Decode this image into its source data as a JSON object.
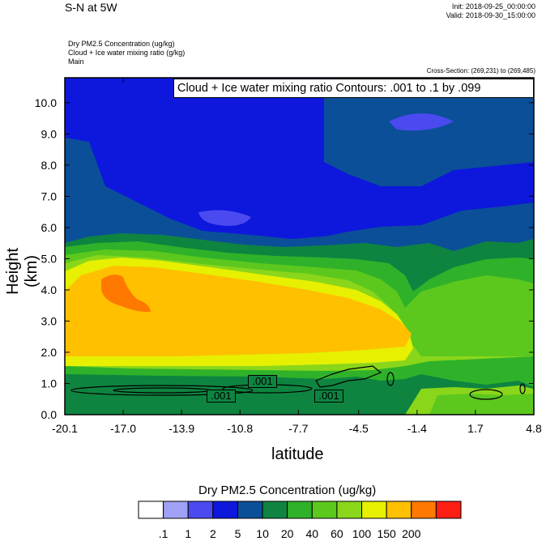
{
  "header": {
    "title": "S-N at 5W",
    "init": "Init: 2018-09-25_00:00:00",
    "valid": "Valid: 2018-09-30_15:00:00",
    "desc_line1": "Dry PM2.5 Concentration   (ug/kg)",
    "desc_line2": "Cloud + Ice water mixing ratio   (g/kg)",
    "desc_line3": "Main",
    "cross_section": "Cross-Section: (269,231) to (269,485)"
  },
  "chart_data": {
    "type": "heatmap",
    "title": "S-N at 5W",
    "xlabel": "latitude",
    "ylabel": "Height (km)",
    "x_ticks": [
      "-20.1",
      "-17.0",
      "-13.9",
      "-10.8",
      "-7.7",
      "-4.5",
      "-1.4",
      "1.7",
      "4.8"
    ],
    "x_tick_values": [
      -20.1,
      -17.0,
      -13.9,
      -10.8,
      -7.7,
      -4.5,
      -1.4,
      1.7,
      4.8
    ],
    "y_ticks": [
      "0.0",
      "1.0",
      "2.0",
      "3.0",
      "4.0",
      "5.0",
      "6.0",
      "7.0",
      "8.0",
      "9.0",
      "10.0"
    ],
    "y_tick_values": [
      0,
      1,
      2,
      3,
      4,
      5,
      6,
      7,
      8,
      9,
      10
    ],
    "xlim": [
      -20.1,
      4.8
    ],
    "ylim": [
      0,
      10.8
    ],
    "contour_box_label": "Cloud + Ice water mixing ratio Contours: .001 to .1 by .099",
    "contour_labels": [
      ".001",
      ".001",
      ".001"
    ],
    "colorbar": {
      "title": "Dry PM2.5 Concentration  (ug/kg)",
      "levels": [
        ".1",
        "1",
        "2",
        "5",
        "10",
        "20",
        "40",
        "60",
        "100",
        "150",
        "200"
      ],
      "colors": [
        "#ffffff",
        "#a0a0f5",
        "#4a4af0",
        "#0e18dc",
        "#0b4f98",
        "#0e8440",
        "#2fb22a",
        "#5cc81e",
        "#8ad61a",
        "#e6f000",
        "#ffc000",
        "#ff7800",
        "#ff1e14"
      ]
    }
  }
}
